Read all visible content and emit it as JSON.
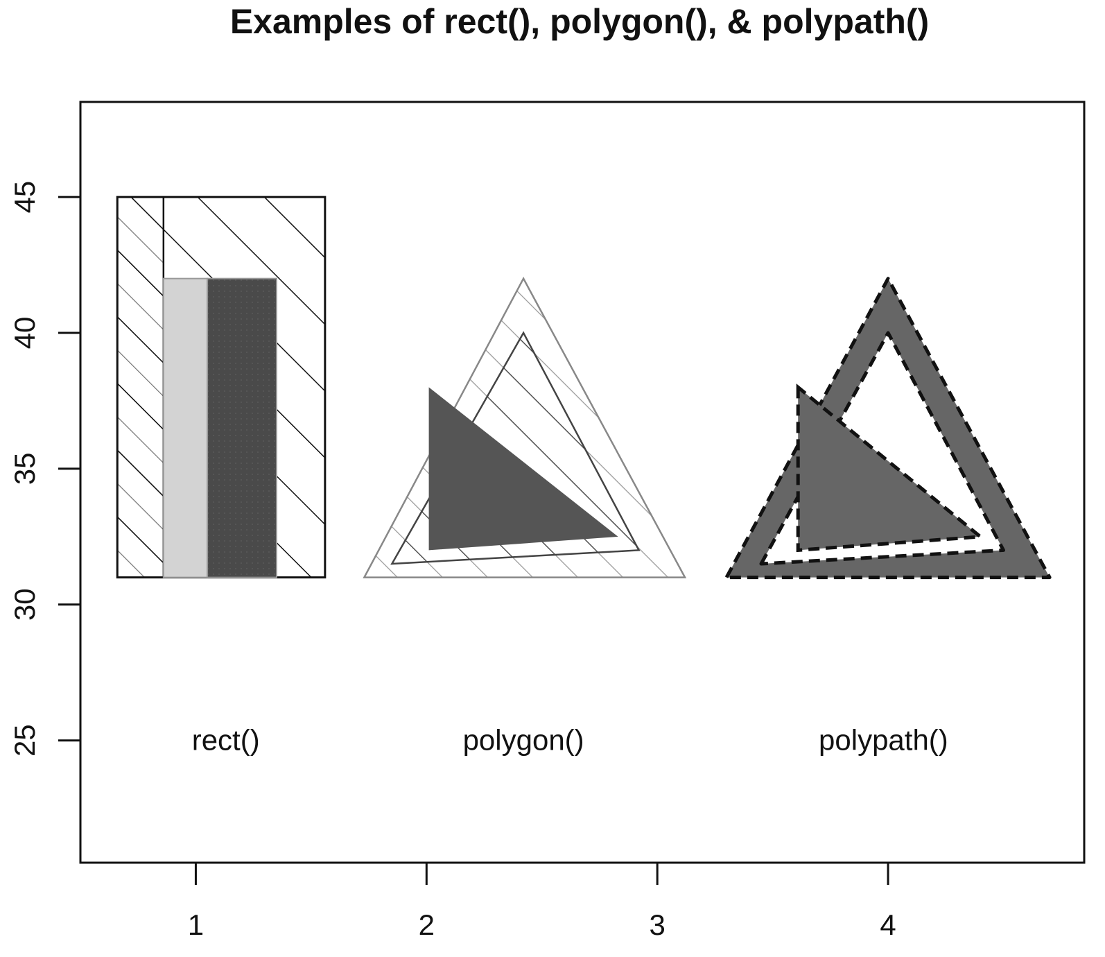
{
  "chart_data": {
    "type": "shape-demo",
    "title": "Examples of rect(), polygon(), & polypath()",
    "xlabel": "",
    "ylabel": "",
    "xlim": [
      0.5,
      4.85
    ],
    "ylim": [
      20.5,
      48.5
    ],
    "grid": false,
    "x_ticks": [
      1,
      2,
      3,
      4
    ],
    "x_tick_labels": [
      "1",
      "2",
      "3",
      "4"
    ],
    "y_ticks": [
      25,
      30,
      35,
      40,
      45
    ],
    "y_tick_labels": [
      "25",
      "30",
      "35",
      "40",
      "45"
    ],
    "annotations": [
      {
        "text": "rect()",
        "x": 1.13,
        "y": 25
      },
      {
        "text": "polygon()",
        "x": 2.42,
        "y": 25
      },
      {
        "text": "polypath()",
        "x": 3.98,
        "y": 25
      }
    ],
    "colors": {
      "light_gray": "#d3d3d3",
      "dark_gray": "#4a4a4a",
      "medium_gray": "#666666",
      "outline": "#111111"
    },
    "rects": [
      {
        "x0": 0.66,
        "x1": 1.56,
        "y0": 31,
        "y1": 45,
        "fill": "none",
        "hatch": "diagonal-45",
        "hatch_colors": [
          "#888888",
          "#111111"
        ]
      },
      {
        "x0": 0.66,
        "x1": 0.86,
        "y0": 31,
        "y1": 45,
        "fill": "none",
        "outline": "#111111"
      },
      {
        "x0": 0.86,
        "x1": 1.05,
        "y0": 31,
        "y1": 42,
        "fill": "#d3d3d3",
        "outline": "#999999"
      },
      {
        "x0": 1.05,
        "x1": 1.35,
        "y0": 31,
        "y1": 42,
        "fill": "#4a4a4a",
        "outline": "#999999"
      }
    ],
    "polygons": [
      {
        "points": [
          [
            1.73,
            31
          ],
          [
            2.42,
            42
          ],
          [
            3.12,
            31
          ]
        ],
        "fill": "none",
        "hatch": "diagonal-45",
        "outline": "#888888"
      },
      {
        "points": [
          [
            1.85,
            31.5
          ],
          [
            2.42,
            40
          ],
          [
            2.92,
            32
          ]
        ],
        "fill": "none",
        "hatch": "diagonal-45",
        "outline": "#444444"
      },
      {
        "points": [
          [
            2.01,
            38
          ],
          [
            2.01,
            32
          ],
          [
            2.83,
            32.5
          ]
        ],
        "fill": "#555555",
        "outline": "none"
      }
    ],
    "polypaths": [
      {
        "outer": [
          [
            3.3,
            31
          ],
          [
            4.0,
            42
          ],
          [
            4.7,
            31
          ]
        ],
        "inner": [
          [
            3.45,
            31.5
          ],
          [
            4.0,
            40
          ],
          [
            4.5,
            32
          ]
        ],
        "fill": "#666666",
        "outline": "#111111",
        "dash": "dashed"
      },
      {
        "points": [
          [
            3.61,
            38
          ],
          [
            3.61,
            32
          ],
          [
            4.4,
            32.5
          ]
        ],
        "fill": "#666666",
        "outline": "#111111",
        "dash": "dashed"
      }
    ]
  }
}
